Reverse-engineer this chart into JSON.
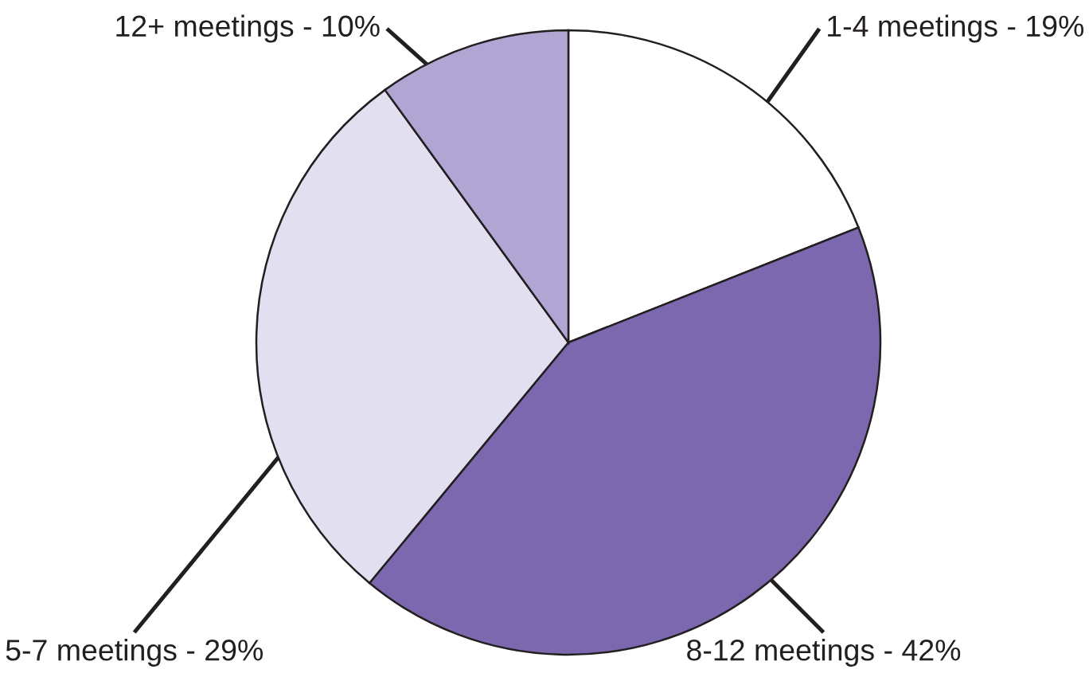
{
  "chart_data": {
    "type": "pie",
    "categories": [
      "1-4 meetings - 19%",
      "8-12 meetings - 42%",
      "5-7 meetings - 29%",
      "12+ meetings - 10%"
    ],
    "values": [
      19,
      42,
      29,
      10
    ],
    "colors": [
      "#ffffff",
      "#7b68ae",
      "#e2dff0",
      "#b1a6d3"
    ]
  }
}
